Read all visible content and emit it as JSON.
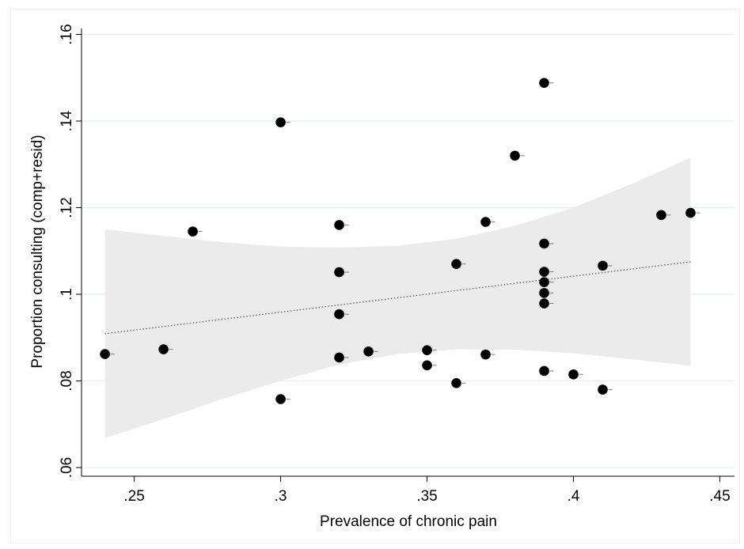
{
  "chart_data": {
    "type": "scatter",
    "xlabel": "Prevalence of chronic pain",
    "ylabel": "Proportion consulting (comp+resid)",
    "xlim": [
      0.232,
      0.455
    ],
    "ylim": [
      0.058,
      0.161
    ],
    "x_ticks": [
      0.25,
      0.3,
      0.35,
      0.4,
      0.45
    ],
    "x_tick_labels": [
      ".25",
      ".3",
      ".35",
      ".4",
      ".45"
    ],
    "y_ticks": [
      0.06,
      0.08,
      0.1,
      0.12,
      0.14,
      0.16
    ],
    "y_tick_labels": [
      ".06",
      ".08",
      ".1",
      ".12",
      ".14",
      ".16"
    ],
    "grid": "horizontal",
    "colors": {
      "points": "#000000",
      "band": "#ebebeb",
      "grid": "#e3eeee",
      "fit": "#555555"
    },
    "fit_line": {
      "x": [
        0.24,
        0.44
      ],
      "y": [
        0.0909,
        0.1075
      ]
    },
    "confidence_band": {
      "x": [
        0.24,
        0.26,
        0.28,
        0.3,
        0.32,
        0.34,
        0.36,
        0.38,
        0.4,
        0.42,
        0.44
      ],
      "upper": [
        0.115,
        0.1135,
        0.112,
        0.111,
        0.1108,
        0.1112,
        0.1128,
        0.1158,
        0.12,
        0.1255,
        0.1315
      ],
      "lower": [
        0.0668,
        0.0712,
        0.0758,
        0.08,
        0.0838,
        0.0862,
        0.0873,
        0.0872,
        0.0864,
        0.085,
        0.0835
      ]
    },
    "points": [
      {
        "x": 0.24,
        "y": 0.0862
      },
      {
        "x": 0.26,
        "y": 0.0873
      },
      {
        "x": 0.27,
        "y": 0.1145
      },
      {
        "x": 0.3,
        "y": 0.1397
      },
      {
        "x": 0.3,
        "y": 0.0758
      },
      {
        "x": 0.32,
        "y": 0.116
      },
      {
        "x": 0.32,
        "y": 0.1051
      },
      {
        "x": 0.32,
        "y": 0.0954
      },
      {
        "x": 0.32,
        "y": 0.0854
      },
      {
        "x": 0.33,
        "y": 0.0868
      },
      {
        "x": 0.35,
        "y": 0.0871
      },
      {
        "x": 0.35,
        "y": 0.0836
      },
      {
        "x": 0.36,
        "y": 0.107
      },
      {
        "x": 0.36,
        "y": 0.0795
      },
      {
        "x": 0.37,
        "y": 0.1167
      },
      {
        "x": 0.37,
        "y": 0.0861
      },
      {
        "x": 0.38,
        "y": 0.132
      },
      {
        "x": 0.39,
        "y": 0.1488
      },
      {
        "x": 0.39,
        "y": 0.1117
      },
      {
        "x": 0.39,
        "y": 0.1052
      },
      {
        "x": 0.39,
        "y": 0.1028
      },
      {
        "x": 0.39,
        "y": 0.1003
      },
      {
        "x": 0.39,
        "y": 0.0979
      },
      {
        "x": 0.39,
        "y": 0.0823
      },
      {
        "x": 0.4,
        "y": 0.0815
      },
      {
        "x": 0.41,
        "y": 0.1066
      },
      {
        "x": 0.41,
        "y": 0.078
      },
      {
        "x": 0.43,
        "y": 0.1183
      },
      {
        "x": 0.44,
        "y": 0.1188
      }
    ]
  }
}
